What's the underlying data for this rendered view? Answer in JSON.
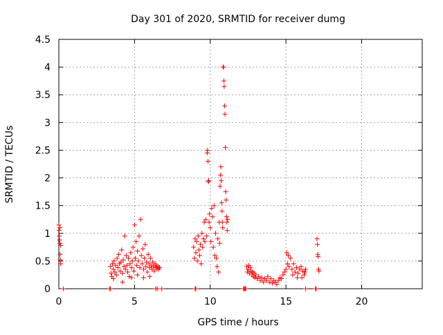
{
  "colors": {
    "series": "#ff0000",
    "axis": "#000000",
    "grid": "#a0a0a0",
    "background": "#ffffff"
  },
  "chart_data": {
    "type": "scatter",
    "title": "Day 301 of 2020, SRMTID for receiver dumg",
    "xlabel": "GPS time / hours",
    "ylabel": "SRMTID / TECUs",
    "xlim": [
      0,
      24
    ],
    "ylim": [
      0,
      4.5
    ],
    "xticks": [
      0,
      5,
      10,
      15,
      20
    ],
    "xtick_labels": [
      "0",
      "5",
      "10",
      "15",
      "20"
    ],
    "yticks": [
      0,
      0.5,
      1,
      1.5,
      2,
      2.5,
      3,
      3.5,
      4,
      4.5
    ],
    "ytick_labels": [
      "0",
      "0.5",
      "1",
      "1.5",
      "2",
      "2.5",
      "3",
      "3.5",
      "4",
      "4.5"
    ],
    "grid": true,
    "marker": "+",
    "series": [
      {
        "name": "SRMTID",
        "points": [
          [
            0.0,
            1.15
          ],
          [
            0.02,
            1.05
          ],
          [
            0.03,
            0.95
          ],
          [
            0.05,
            0.88
          ],
          [
            0.07,
            0.82
          ],
          [
            0.08,
            0.62
          ],
          [
            0.1,
            0.52
          ],
          [
            0.12,
            0.45
          ],
          [
            0.08,
            1.1
          ],
          [
            0.12,
            0.78
          ],
          [
            3.4,
            0.4
          ],
          [
            3.45,
            0.28
          ],
          [
            3.5,
            0.22
          ],
          [
            3.55,
            0.45
          ],
          [
            3.6,
            0.35
          ],
          [
            3.65,
            0.5
          ],
          [
            3.7,
            0.3
          ],
          [
            3.75,
            0.42
          ],
          [
            3.8,
            0.25
          ],
          [
            3.85,
            0.55
          ],
          [
            3.9,
            0.38
          ],
          [
            3.95,
            0.62
          ],
          [
            4.0,
            0.45
          ],
          [
            4.05,
            0.32
          ],
          [
            4.1,
            0.48
          ],
          [
            4.15,
            0.7
          ],
          [
            4.2,
            0.28
          ],
          [
            4.25,
            0.52
          ],
          [
            4.3,
            0.4
          ],
          [
            4.35,
            0.95
          ],
          [
            4.4,
            0.35
          ],
          [
            4.45,
            0.6
          ],
          [
            4.5,
            0.42
          ],
          [
            4.55,
            0.3
          ],
          [
            4.6,
            0.55
          ],
          [
            4.65,
            0.22
          ],
          [
            4.7,
            0.45
          ],
          [
            4.75,
            0.65
          ],
          [
            4.8,
            0.38
          ],
          [
            4.85,
            0.5
          ],
          [
            4.9,
            0.75
          ],
          [
            4.95,
            0.32
          ],
          [
            5.0,
            1.15
          ],
          [
            5.05,
            0.55
          ],
          [
            5.1,
            0.85
          ],
          [
            5.15,
            0.42
          ],
          [
            5.2,
            0.68
          ],
          [
            5.25,
            0.5
          ],
          [
            5.3,
            0.95
          ],
          [
            5.35,
            0.38
          ],
          [
            5.4,
            1.25
          ],
          [
            5.45,
            0.6
          ],
          [
            5.5,
            0.45
          ],
          [
            5.55,
            0.72
          ],
          [
            5.6,
            0.35
          ],
          [
            5.65,
            0.55
          ],
          [
            5.7,
            0.8
          ],
          [
            5.75,
            0.4
          ],
          [
            5.8,
            0.48
          ],
          [
            5.85,
            0.3
          ],
          [
            5.9,
            0.62
          ],
          [
            5.95,
            0.45
          ],
          [
            6.0,
            0.38
          ],
          [
            6.05,
            0.55
          ],
          [
            6.1,
            0.42
          ],
          [
            6.15,
            0.35
          ],
          [
            6.2,
            0.48
          ],
          [
            6.25,
            0.4
          ],
          [
            6.3,
            0.32
          ],
          [
            6.35,
            0.45
          ],
          [
            6.4,
            0.38
          ],
          [
            6.45,
            0.42
          ],
          [
            6.5,
            0.36
          ],
          [
            6.55,
            0.4
          ],
          [
            6.6,
            0.35
          ],
          [
            6.65,
            0.38
          ],
          [
            3.6,
            0.18
          ],
          [
            4.2,
            0.12
          ],
          [
            4.8,
            0.2
          ],
          [
            5.2,
            0.25
          ],
          [
            5.6,
            0.2
          ],
          [
            6.0,
            0.22
          ],
          [
            8.9,
            0.75
          ],
          [
            8.95,
            0.55
          ],
          [
            9.0,
            0.9
          ],
          [
            9.05,
            0.65
          ],
          [
            9.1,
            0.85
          ],
          [
            9.15,
            0.5
          ],
          [
            9.2,
            0.95
          ],
          [
            9.25,
            0.7
          ],
          [
            9.3,
            0.6
          ],
          [
            9.35,
            0.8
          ],
          [
            9.4,
            0.45
          ],
          [
            9.45,
            1.0
          ],
          [
            9.5,
            0.75
          ],
          [
            9.55,
            0.9
          ],
          [
            9.6,
            1.2
          ],
          [
            9.65,
            0.85
          ],
          [
            9.7,
            1.25
          ],
          [
            9.75,
            0.95
          ],
          [
            9.8,
            2.45
          ],
          [
            9.82,
            2.5
          ],
          [
            9.85,
            2.3
          ],
          [
            9.87,
            1.93
          ],
          [
            9.9,
            1.95
          ],
          [
            9.92,
            1.2
          ],
          [
            9.95,
            1.35
          ],
          [
            10.0,
            1.1
          ],
          [
            10.05,
            0.85
          ],
          [
            10.1,
            1.45
          ],
          [
            10.15,
            1.3
          ],
          [
            10.2,
            0.75
          ],
          [
            10.25,
            1.5
          ],
          [
            10.3,
            0.6
          ],
          [
            10.35,
            1.0
          ],
          [
            10.4,
            0.55
          ],
          [
            10.45,
            0.4
          ],
          [
            10.5,
            0.9
          ],
          [
            10.55,
            0.3
          ],
          [
            10.6,
            1.2
          ],
          [
            10.62,
            0.82
          ],
          [
            10.65,
            1.85
          ],
          [
            10.68,
            2.05
          ],
          [
            10.7,
            2.2
          ],
          [
            10.72,
            1.95
          ],
          [
            10.75,
            1.55
          ],
          [
            10.78,
            1.4
          ],
          [
            10.8,
            1.2
          ],
          [
            10.82,
            1.1
          ],
          [
            10.85,
            4.0
          ],
          [
            10.88,
            4.0
          ],
          [
            10.9,
            3.75
          ],
          [
            10.92,
            3.65
          ],
          [
            10.95,
            3.3
          ],
          [
            10.97,
            3.15
          ],
          [
            11.0,
            2.55
          ],
          [
            11.02,
            1.75
          ],
          [
            11.05,
            1.6
          ],
          [
            11.08,
            1.3
          ],
          [
            11.1,
            1.2
          ],
          [
            11.12,
            1.05
          ],
          [
            11.15,
            1.25
          ],
          [
            12.4,
            0.4
          ],
          [
            12.45,
            0.3
          ],
          [
            12.5,
            0.35
          ],
          [
            12.55,
            0.42
          ],
          [
            12.6,
            0.28
          ],
          [
            12.65,
            0.38
          ],
          [
            12.7,
            0.32
          ],
          [
            12.75,
            0.25
          ],
          [
            12.8,
            0.3
          ],
          [
            12.85,
            0.22
          ],
          [
            12.9,
            0.28
          ],
          [
            12.95,
            0.2
          ],
          [
            13.0,
            0.25
          ],
          [
            13.1,
            0.18
          ],
          [
            13.2,
            0.22
          ],
          [
            13.3,
            0.15
          ],
          [
            13.4,
            0.2
          ],
          [
            13.5,
            0.12
          ],
          [
            13.6,
            0.18
          ],
          [
            13.7,
            0.15
          ],
          [
            13.8,
            0.22
          ],
          [
            13.9,
            0.12
          ],
          [
            14.0,
            0.18
          ],
          [
            14.1,
            0.1
          ],
          [
            14.2,
            0.15
          ],
          [
            14.3,
            0.12
          ],
          [
            14.4,
            0.08
          ],
          [
            14.5,
            0.15
          ],
          [
            14.6,
            0.2
          ],
          [
            14.7,
            0.18
          ],
          [
            14.8,
            0.25
          ],
          [
            14.9,
            0.3
          ],
          [
            15.0,
            0.35
          ],
          [
            15.1,
            0.45
          ],
          [
            15.2,
            0.4
          ],
          [
            15.3,
            0.55
          ],
          [
            15.4,
            0.35
          ],
          [
            15.5,
            0.45
          ],
          [
            15.6,
            0.3
          ],
          [
            15.7,
            0.38
          ],
          [
            15.8,
            0.28
          ],
          [
            15.9,
            0.35
          ],
          [
            16.0,
            0.4
          ],
          [
            16.1,
            0.32
          ],
          [
            16.2,
            0.25
          ],
          [
            16.3,
            0.35
          ],
          [
            15.05,
            0.65
          ],
          [
            15.15,
            0.6
          ],
          [
            15.45,
            0.25
          ],
          [
            15.75,
            0.2
          ],
          [
            16.05,
            0.2
          ],
          [
            16.25,
            0.3
          ],
          [
            17.05,
            0.9
          ],
          [
            17.08,
            0.8
          ],
          [
            17.1,
            0.62
          ],
          [
            17.12,
            0.58
          ],
          [
            17.15,
            0.35
          ],
          [
            17.18,
            0.32
          ],
          [
            0.3,
            0.0
          ],
          [
            3.35,
            0.0
          ],
          [
            3.4,
            0.0
          ],
          [
            6.4,
            0.0
          ],
          [
            6.5,
            0.0
          ],
          [
            6.8,
            0.0
          ],
          [
            9.0,
            0.0
          ],
          [
            9.05,
            0.0
          ],
          [
            12.2,
            0.0
          ],
          [
            12.25,
            0.0
          ],
          [
            12.3,
            0.0
          ],
          [
            12.35,
            0.0
          ],
          [
            16.3,
            0.0
          ],
          [
            16.95,
            0.0
          ],
          [
            17.0,
            0.0
          ]
        ]
      }
    ]
  }
}
